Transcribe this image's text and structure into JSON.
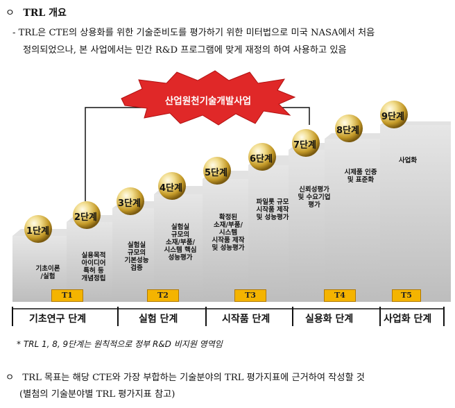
{
  "header": {
    "bullet": "ㅇ",
    "title": "TRL 개요",
    "line1": "- TRL은 CTE의 상용화를 위한 기술준비도를 평가하기 위한 미터법으로 미국 NASA에서 처음",
    "line2": "정의되었으나, 본 사업에서는 민간 R&D 프로그램에 맞게 재정의 하여 사용하고 있음"
  },
  "diagram": {
    "banner": "산업원천기술개발사업",
    "steps": [
      {
        "label": "1단계",
        "desc": [
          "기초이론",
          "/실험"
        ]
      },
      {
        "label": "2단계",
        "desc": [
          "실용목적",
          "아이디어",
          "특허 등",
          "개념정립"
        ]
      },
      {
        "label": "3단계",
        "desc": [
          "실험실",
          "규모의",
          "기본성능",
          "검증"
        ]
      },
      {
        "label": "4단계",
        "desc": [
          "실험실",
          "규모의",
          "소재/부품/",
          "시스템 핵심",
          "성능평가"
        ]
      },
      {
        "label": "5단계",
        "desc": [
          "확정된",
          "소재/부품/",
          "시스템",
          "시작품 제작",
          "및 성능평가"
        ]
      },
      {
        "label": "6단계",
        "desc": [
          "파일롯 규모",
          "시작품 제작",
          "및 성능평가"
        ]
      },
      {
        "label": "7단계",
        "desc": [
          "신뢰성평가",
          "및 수요기업",
          "평가"
        ]
      },
      {
        "label": "8단계",
        "desc": [
          "시제품 인증",
          "및 표준화"
        ]
      },
      {
        "label": "9단계",
        "desc": [
          "사업화"
        ]
      }
    ],
    "t_labels": [
      "T1",
      "T2",
      "T3",
      "T4",
      "T5"
    ],
    "stages": [
      "기초연구 단계",
      "실험 단계",
      "시작품 단계",
      "실용화 단계",
      "사업화 단계"
    ],
    "colors": {
      "step_face": "#d2d2d2",
      "step_top": "#eaeaea",
      "t_box": "#f4b400",
      "banner": "#e02828"
    }
  },
  "footnote": "* TRL 1, 8, 9단계는 원칙적으로 정부 R&D 비지원 영역임",
  "goal": {
    "bullet": "ㅇ",
    "line1": "TRL 목표는 해당 CTE와 가장 부합하는 기술분야의 TRL 평가지표에 근거하여 작성할 것",
    "line2": "(별첨의 기술분야별 TRL 평가지표 참고)"
  }
}
